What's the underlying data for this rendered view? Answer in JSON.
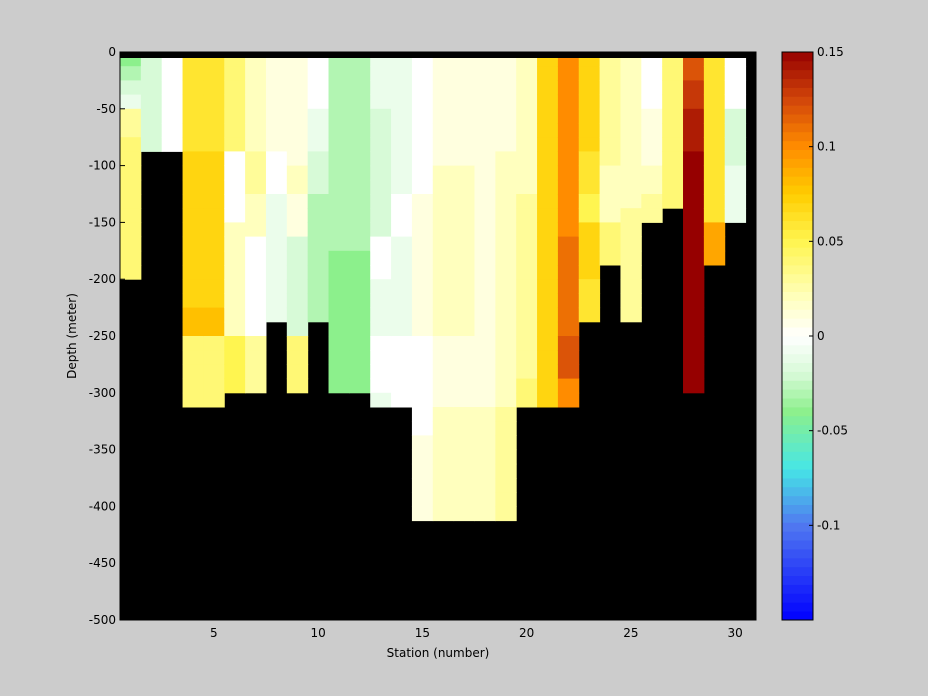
{
  "chart_data": {
    "type": "heatmap",
    "title": "",
    "xlabel": "Station (number)",
    "ylabel": "Depth (meter)",
    "x_range": [
      0.5,
      31
    ],
    "y_range": [
      -500,
      0
    ],
    "x_ticks": [
      5,
      10,
      15,
      20,
      25,
      30
    ],
    "y_ticks": [
      0,
      -50,
      -100,
      -150,
      -200,
      -250,
      -300,
      -350,
      -400,
      -450,
      -500
    ],
    "colorbar": {
      "range": [
        -0.15,
        0.15
      ],
      "ticks": [
        0.15,
        0.1,
        0.05,
        0,
        -0.05,
        -0.1
      ],
      "levels": 64
    },
    "background_color": "#000000",
    "depth_step": 12.5,
    "stations": [
      {
        "x": 1,
        "max_depth": 200,
        "values": [
          -0.04,
          -0.03,
          -0.02,
          -0.01,
          0.03,
          0.03,
          0.04,
          0.04,
          0.04,
          0.04,
          0.04,
          0.04,
          0.04,
          0.04,
          0.04,
          0.04
        ]
      },
      {
        "x": 2,
        "max_depth": 75,
        "values": [
          -0.02,
          -0.02,
          -0.02,
          -0.02,
          -0.02,
          -0.02,
          -0.02
        ]
      },
      {
        "x": 3,
        "max_depth": 75,
        "values": [
          0.0,
          0.0,
          0.0,
          0.0,
          0.0,
          0.0,
          0.0
        ]
      },
      {
        "x": 4,
        "max_depth": 300,
        "values": [
          0.06,
          0.06,
          0.06,
          0.06,
          0.06,
          0.06,
          0.06,
          0.07,
          0.07,
          0.07,
          0.07,
          0.07,
          0.07,
          0.07,
          0.07,
          0.07,
          0.07,
          0.07,
          0.08,
          0.08,
          0.04,
          0.04,
          0.04,
          0.04,
          0.04
        ]
      },
      {
        "x": 5,
        "max_depth": 300,
        "values": [
          0.06,
          0.06,
          0.06,
          0.06,
          0.06,
          0.06,
          0.06,
          0.07,
          0.07,
          0.07,
          0.07,
          0.07,
          0.07,
          0.07,
          0.07,
          0.07,
          0.07,
          0.07,
          0.08,
          0.08,
          0.04,
          0.04,
          0.04,
          0.04,
          0.04
        ]
      },
      {
        "x": 6,
        "max_depth": 250,
        "values": [
          0.04,
          0.04,
          0.04,
          0.04,
          0.04,
          0.04,
          0.04,
          0.0,
          0.0,
          0.0,
          0.0,
          0.0,
          0.02,
          0.02,
          0.02,
          0.02,
          0.02,
          0.02,
          0.02,
          0.02,
          0.05,
          0.05,
          0.05,
          0.05
        ]
      },
      {
        "x": 7,
        "max_depth": 250,
        "values": [
          0.02,
          0.02,
          0.02,
          0.02,
          0.02,
          0.02,
          0.02,
          0.03,
          0.03,
          0.03,
          0.02,
          0.02,
          0.02,
          0.0,
          0.0,
          0.0,
          0.0,
          0.0,
          0.0,
          0.0,
          0.03,
          0.03,
          0.03,
          0.03
        ]
      },
      {
        "x": 8,
        "max_depth": 200,
        "values": [
          0.01,
          0.01,
          0.01,
          0.01,
          0.01,
          0.01,
          0.01,
          0.0,
          0.0,
          0.0,
          -0.01,
          -0.01,
          -0.01,
          -0.01,
          -0.01,
          -0.01,
          -0.01,
          -0.01,
          -0.01
        ]
      },
      {
        "x": 9,
        "max_depth": 250,
        "values": [
          0.01,
          0.01,
          0.01,
          0.01,
          0.01,
          0.01,
          0.01,
          0.01,
          0.02,
          0.02,
          0.01,
          0.01,
          0.01,
          -0.02,
          -0.02,
          -0.02,
          -0.02,
          -0.02,
          -0.02,
          -0.02,
          0.04,
          0.04,
          0.04,
          0.04
        ]
      },
      {
        "x": 10,
        "max_depth": 200,
        "values": [
          0.0,
          0.0,
          0.0,
          0.0,
          -0.01,
          -0.01,
          -0.01,
          -0.02,
          -0.02,
          -0.02,
          -0.03,
          -0.03,
          -0.03,
          -0.03,
          -0.03,
          -0.03,
          -0.03,
          -0.03,
          -0.03
        ]
      },
      {
        "x": 11,
        "max_depth": 250,
        "values": [
          -0.03,
          -0.03,
          -0.03,
          -0.03,
          -0.03,
          -0.03,
          -0.03,
          -0.03,
          -0.03,
          -0.03,
          -0.03,
          -0.03,
          -0.03,
          -0.03,
          -0.04,
          -0.04,
          -0.04,
          -0.04,
          -0.04,
          -0.04,
          -0.04,
          -0.04,
          -0.04,
          -0.04
        ]
      },
      {
        "x": 12,
        "max_depth": 250,
        "values": [
          -0.03,
          -0.03,
          -0.03,
          -0.03,
          -0.03,
          -0.03,
          -0.03,
          -0.03,
          -0.03,
          -0.03,
          -0.03,
          -0.03,
          -0.03,
          -0.03,
          -0.04,
          -0.04,
          -0.04,
          -0.04,
          -0.04,
          -0.04,
          -0.04,
          -0.04,
          -0.04,
          -0.04
        ]
      },
      {
        "x": 13,
        "max_depth": 300,
        "values": [
          -0.01,
          -0.01,
          -0.01,
          -0.01,
          -0.02,
          -0.02,
          -0.02,
          -0.02,
          -0.02,
          -0.02,
          -0.02,
          -0.02,
          -0.02,
          0.0,
          0.0,
          0.0,
          -0.01,
          -0.01,
          -0.01,
          -0.01,
          0.0,
          0.0,
          0.0,
          0.0,
          -0.01
        ]
      },
      {
        "x": 14,
        "max_depth": 300,
        "values": [
          -0.01,
          -0.01,
          -0.01,
          -0.01,
          -0.01,
          -0.01,
          -0.01,
          -0.01,
          -0.01,
          -0.01,
          0.0,
          0.0,
          0.0,
          -0.01,
          -0.01,
          -0.01,
          -0.01,
          -0.01,
          -0.01,
          -0.01,
          0.0,
          0.0,
          0.0,
          0.0,
          0.0
        ]
      },
      {
        "x": 15,
        "max_depth": 400,
        "values": [
          0.0,
          0.0,
          0.0,
          0.0,
          0.0,
          0.0,
          0.0,
          0.0,
          0.0,
          0.0,
          0.01,
          0.01,
          0.01,
          0.01,
          0.01,
          0.01,
          0.01,
          0.01,
          0.01,
          0.01,
          0.0,
          0.0,
          0.0,
          0.0,
          0.0,
          0.0,
          0.0,
          0.01,
          0.01,
          0.01,
          0.01,
          0.01,
          0.01
        ]
      },
      {
        "x": 16,
        "max_depth": 400,
        "values": [
          0.01,
          0.01,
          0.01,
          0.01,
          0.01,
          0.01,
          0.01,
          0.01,
          0.02,
          0.02,
          0.02,
          0.02,
          0.02,
          0.02,
          0.02,
          0.02,
          0.02,
          0.02,
          0.02,
          0.02,
          0.01,
          0.01,
          0.01,
          0.01,
          0.01,
          0.02,
          0.02,
          0.02,
          0.02,
          0.02,
          0.02,
          0.02,
          0.02
        ]
      },
      {
        "x": 17,
        "max_depth": 400,
        "values": [
          0.01,
          0.01,
          0.01,
          0.01,
          0.01,
          0.01,
          0.01,
          0.01,
          0.02,
          0.02,
          0.02,
          0.02,
          0.02,
          0.02,
          0.02,
          0.02,
          0.02,
          0.02,
          0.02,
          0.02,
          0.01,
          0.01,
          0.01,
          0.01,
          0.01,
          0.02,
          0.02,
          0.02,
          0.02,
          0.02,
          0.02,
          0.02,
          0.02
        ]
      },
      {
        "x": 18,
        "max_depth": 400,
        "values": [
          0.01,
          0.01,
          0.01,
          0.01,
          0.01,
          0.01,
          0.01,
          0.01,
          0.01,
          0.01,
          0.01,
          0.01,
          0.01,
          0.01,
          0.01,
          0.01,
          0.01,
          0.01,
          0.01,
          0.01,
          0.01,
          0.01,
          0.01,
          0.01,
          0.01,
          0.02,
          0.02,
          0.02,
          0.02,
          0.02,
          0.02,
          0.02,
          0.02
        ]
      },
      {
        "x": 19,
        "max_depth": 400,
        "values": [
          0.01,
          0.01,
          0.01,
          0.01,
          0.01,
          0.01,
          0.01,
          0.02,
          0.02,
          0.02,
          0.02,
          0.02,
          0.02,
          0.02,
          0.02,
          0.02,
          0.02,
          0.02,
          0.02,
          0.02,
          0.02,
          0.02,
          0.02,
          0.02,
          0.02,
          0.03,
          0.03,
          0.03,
          0.03,
          0.03,
          0.03,
          0.03,
          0.03
        ]
      },
      {
        "x": 20,
        "max_depth": 300,
        "values": [
          0.02,
          0.02,
          0.02,
          0.02,
          0.02,
          0.02,
          0.02,
          0.02,
          0.02,
          0.02,
          0.03,
          0.03,
          0.03,
          0.03,
          0.03,
          0.03,
          0.03,
          0.03,
          0.03,
          0.03,
          0.03,
          0.03,
          0.03,
          0.04,
          0.04
        ]
      },
      {
        "x": 21,
        "max_depth": 300,
        "values": [
          0.07,
          0.07,
          0.07,
          0.07,
          0.07,
          0.07,
          0.07,
          0.07,
          0.07,
          0.07,
          0.07,
          0.07,
          0.07,
          0.07,
          0.07,
          0.07,
          0.07,
          0.07,
          0.07,
          0.07,
          0.07,
          0.07,
          0.07,
          0.07,
          0.07
        ]
      },
      {
        "x": 22,
        "max_depth": 300,
        "values": [
          0.1,
          0.1,
          0.1,
          0.1,
          0.1,
          0.1,
          0.1,
          0.1,
          0.1,
          0.1,
          0.1,
          0.1,
          0.1,
          0.11,
          0.11,
          0.11,
          0.11,
          0.11,
          0.11,
          0.11,
          0.12,
          0.12,
          0.12,
          0.1,
          0.1
        ]
      },
      {
        "x": 23,
        "max_depth": 200,
        "values": [
          0.07,
          0.07,
          0.07,
          0.07,
          0.07,
          0.07,
          0.07,
          0.06,
          0.06,
          0.06,
          0.05,
          0.05,
          0.07,
          0.07,
          0.07,
          0.07,
          0.06,
          0.06,
          0.06
        ]
      },
      {
        "x": 24,
        "max_depth": 150,
        "values": [
          0.03,
          0.03,
          0.03,
          0.03,
          0.03,
          0.03,
          0.03,
          0.03,
          0.02,
          0.02,
          0.02,
          0.02,
          0.04,
          0.04,
          0.04
        ]
      },
      {
        "x": 25,
        "max_depth": 200,
        "values": [
          0.02,
          0.02,
          0.02,
          0.02,
          0.02,
          0.02,
          0.02,
          0.02,
          0.02,
          0.02,
          0.02,
          0.03,
          0.03,
          0.03,
          0.03,
          0.03,
          0.03,
          0.03,
          0.03
        ]
      },
      {
        "x": 26,
        "max_depth": 125,
        "values": [
          0.0,
          0.0,
          0.0,
          0.0,
          0.01,
          0.01,
          0.01,
          0.01,
          0.02,
          0.02,
          0.03,
          0.03
        ]
      },
      {
        "x": 27,
        "max_depth": 100,
        "values": [
          0.04,
          0.04,
          0.04,
          0.04,
          0.04,
          0.04,
          0.04,
          0.04,
          0.04,
          0.04,
          0.04
        ]
      },
      {
        "x": 28,
        "max_depth": 250,
        "values": [
          0.12,
          0.12,
          0.13,
          0.13,
          0.14,
          0.14,
          0.14,
          0.15,
          0.15,
          0.15,
          0.15,
          0.15,
          0.15,
          0.15,
          0.15,
          0.15,
          0.15,
          0.15,
          0.15,
          0.15,
          0.15,
          0.15,
          0.15,
          0.15
        ]
      },
      {
        "x": 29,
        "max_depth": 150,
        "values": [
          0.06,
          0.06,
          0.06,
          0.06,
          0.06,
          0.06,
          0.06,
          0.06,
          0.06,
          0.06,
          0.06,
          0.06,
          0.09,
          0.09,
          0.09
        ]
      },
      {
        "x": 30,
        "max_depth": 125,
        "values": [
          0.0,
          0.0,
          0.0,
          0.0,
          -0.02,
          -0.02,
          -0.02,
          -0.02,
          -0.01,
          -0.01,
          -0.01,
          -0.01
        ]
      }
    ]
  }
}
